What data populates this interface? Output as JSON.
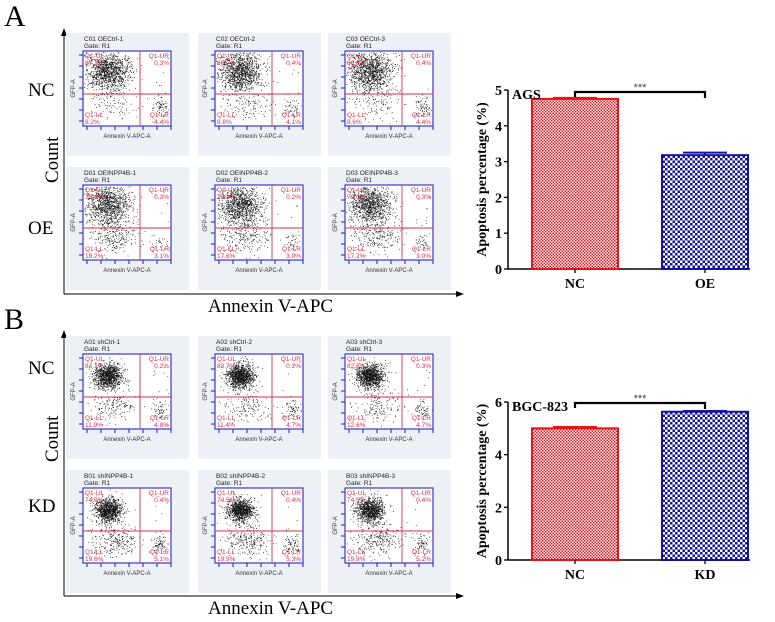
{
  "panels": [
    {
      "letter": "A",
      "row_labels": [
        "NC",
        "OE"
      ],
      "y_axis_label": "Count",
      "x_axis_label": "Annexin V-APC",
      "flow_plots": [
        {
          "title": "C01 OECtrl-1",
          "gate": "Gate: R1",
          "UL": "87.1%",
          "UR": "0.3%",
          "LL": "8.2%",
          "LR": "4.4%"
        },
        {
          "title": "C02 OECtrl-2",
          "gate": "Gate: R1",
          "UL": "86.7%",
          "UR": "0.4%",
          "LL": "8.8%",
          "LR": "4.1%"
        },
        {
          "title": "C03 OECtrl-3",
          "gate": "Gate: R1",
          "UL": "86.6%",
          "UR": "0.4%",
          "LL": "8.6%",
          "LR": "4.4%"
        },
        {
          "title": "D01 OEINPP4B-1",
          "gate": "Gate: R1",
          "UL": "78.4%",
          "UR": "0.3%",
          "LL": "18.2%",
          "LR": "3.1%"
        },
        {
          "title": "D02 OEINPP4B-2",
          "gate": "Gate: R1",
          "UL": "79.2%",
          "UR": "0.2%",
          "LL": "17.6%",
          "LR": "3.0%"
        },
        {
          "title": "D03 OEINPP4B-3",
          "gate": "Gate: R1",
          "UL": "79.0%",
          "UR": "0.3%",
          "LL": "17.7%",
          "LR": "3.0%"
        }
      ]
    },
    {
      "letter": "B",
      "row_labels": [
        "NC",
        "KD"
      ],
      "y_axis_label": "Count",
      "x_axis_label": "Annexin V-APC",
      "flow_plots": [
        {
          "title": "A01 shCtrl-1",
          "gate": "Gate: R1",
          "UL": "83.1%",
          "UR": "0.2%",
          "LL": "11.9%",
          "LR": "4.8%"
        },
        {
          "title": "A02 shCtrl-2",
          "gate": "Gate: R1",
          "UL": "83.7%",
          "UR": "0.2%",
          "LL": "11.4%",
          "LR": "4.7%"
        },
        {
          "title": "A03 shCtrl-3",
          "gate": "Gate: R1",
          "UL": "82.3%",
          "UR": "0.3%",
          "LL": "12.6%",
          "LR": "4.7%"
        },
        {
          "title": "B01 shINPP4B-1",
          "gate": "Gate: R1",
          "UL": "74.8%",
          "UR": "0.4%",
          "LL": "19.6%",
          "LR": "5.1%"
        },
        {
          "title": "B02 shINPP4B-2",
          "gate": "Gate: R1",
          "UL": "74.5%",
          "UR": "0.4%",
          "LL": "19.9%",
          "LR": "5.3%"
        },
        {
          "title": "B03 shINPP4B-3",
          "gate": "Gate: R1",
          "UL": "74.5%",
          "UR": "0.4%",
          "LL": "19.9%",
          "LR": "5.2%"
        }
      ]
    }
  ],
  "flow_axis": {
    "x_label": "Annexin V-APC-A",
    "y_label": "GFP-A",
    "quadrants": [
      "Q1-UL",
      "Q1-UR",
      "Q1-LL",
      "Q1-LR"
    ]
  },
  "chart_data": [
    {
      "type": "bar",
      "title": "AGS",
      "categories": [
        "NC",
        "OE"
      ],
      "values": [
        4.75,
        3.18
      ],
      "errors": [
        0.03,
        0.07
      ],
      "ylabel": "Apoptosis percentage (%)",
      "xlabel": "",
      "ylim": [
        0,
        5
      ],
      "yticks": [
        0,
        1,
        2,
        3,
        4,
        5
      ],
      "significance": "***",
      "colors": [
        "#e8141c",
        "#1414a0"
      ],
      "grid": false
    },
    {
      "type": "bar",
      "title": "BGC-823",
      "categories": [
        "NC",
        "KD"
      ],
      "values": [
        5.0,
        5.63
      ],
      "errors": [
        0.05,
        0.03
      ],
      "ylabel": "Apoptosis percentage (%)",
      "xlabel": "",
      "ylim": [
        0,
        6
      ],
      "yticks": [
        0,
        2,
        4,
        6
      ],
      "significance": "***",
      "colors": [
        "#e8141c",
        "#1414a0"
      ],
      "grid": false
    }
  ]
}
